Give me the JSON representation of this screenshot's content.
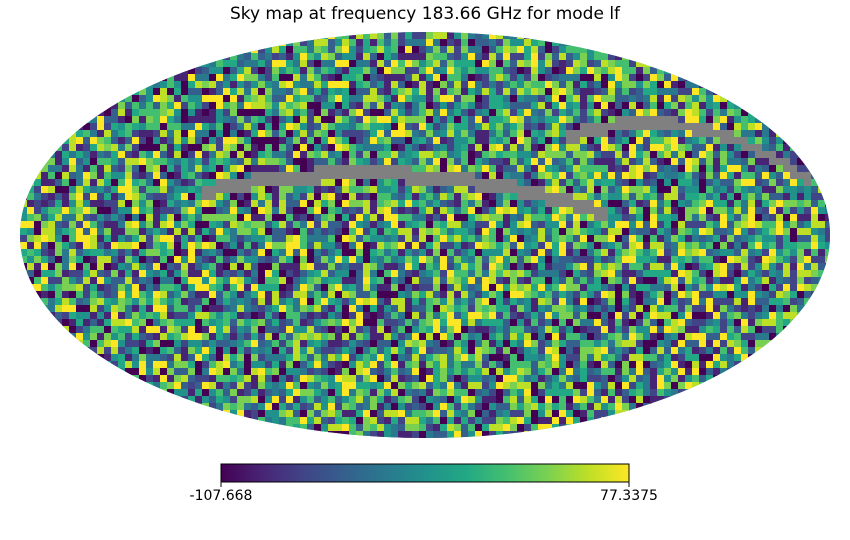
{
  "chart_data": {
    "type": "heatmap",
    "projection": "mollweide",
    "title": "Sky map at frequency 183.66 GHz for mode lf",
    "colormap": "viridis",
    "bad_value_color": "#808080",
    "colorbar": {
      "min": -107.668,
      "max": 77.3375,
      "min_label": "-107.668",
      "max_label": "77.3375",
      "orientation": "horizontal"
    }
  }
}
